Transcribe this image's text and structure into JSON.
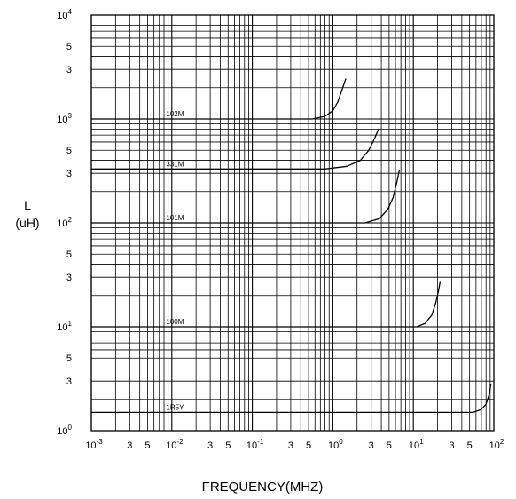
{
  "chart_data": {
    "type": "line",
    "title": "",
    "xlabel": "FREQUENCY(MHZ)",
    "ylabel": [
      "L",
      "(uH)"
    ],
    "x_scale": "log",
    "y_scale": "log",
    "xlim": [
      0.001,
      100
    ],
    "ylim": [
      1,
      10000
    ],
    "grid": true,
    "x_ticks": [
      {
        "v": 0.001,
        "base": "10",
        "exp": "-3"
      },
      {
        "v": 0.003,
        "base": "3"
      },
      {
        "v": 0.005,
        "base": "5"
      },
      {
        "v": 0.01,
        "base": "10",
        "exp": "-2"
      },
      {
        "v": 0.03,
        "base": "3"
      },
      {
        "v": 0.05,
        "base": "5"
      },
      {
        "v": 0.1,
        "base": "10",
        "exp": "-1"
      },
      {
        "v": 0.3,
        "base": "3"
      },
      {
        "v": 0.5,
        "base": "5"
      },
      {
        "v": 1,
        "base": "10",
        "exp": "0"
      },
      {
        "v": 3,
        "base": "3"
      },
      {
        "v": 5,
        "base": "5"
      },
      {
        "v": 10,
        "base": "10",
        "exp": "1"
      },
      {
        "v": 30,
        "base": "3"
      },
      {
        "v": 50,
        "base": "5"
      },
      {
        "v": 100,
        "base": "10",
        "exp": "2"
      }
    ],
    "y_ticks": [
      {
        "v": 1,
        "base": "10",
        "exp": "0"
      },
      {
        "v": 3,
        "base": "3"
      },
      {
        "v": 5,
        "base": "5"
      },
      {
        "v": 10,
        "base": "10",
        "exp": "1"
      },
      {
        "v": 30,
        "base": "3"
      },
      {
        "v": 50,
        "base": "5"
      },
      {
        "v": 100,
        "base": "10",
        "exp": "2"
      },
      {
        "v": 300,
        "base": "3"
      },
      {
        "v": 500,
        "base": "5"
      },
      {
        "v": 1000,
        "base": "10",
        "exp": "3"
      },
      {
        "v": 3000,
        "base": "3"
      },
      {
        "v": 5000,
        "base": "5"
      },
      {
        "v": 10000,
        "base": "10",
        "exp": "4"
      }
    ],
    "series": [
      {
        "name": "102M",
        "label_x": 0.0085,
        "x": [
          0.001,
          0.55,
          0.8,
          1.0,
          1.15,
          1.3,
          1.45
        ],
        "y": [
          1000,
          1000,
          1060,
          1200,
          1450,
          1900,
          2450
        ]
      },
      {
        "name": "331M",
        "label_x": 0.0085,
        "x": [
          0.001,
          0.8,
          1.5,
          2.2,
          2.8,
          3.3,
          3.7
        ],
        "y": [
          330,
          330,
          350,
          400,
          500,
          650,
          800
        ]
      },
      {
        "name": "101M",
        "label_x": 0.0085,
        "x": [
          0.001,
          2.5,
          3.8,
          4.8,
          5.6,
          6.2,
          6.7
        ],
        "y": [
          100,
          100,
          110,
          135,
          175,
          240,
          320
        ]
      },
      {
        "name": "100M",
        "label_x": 0.0085,
        "x": [
          0.001,
          11,
          14,
          17,
          19,
          20.5,
          21.5
        ],
        "y": [
          10,
          10,
          10.8,
          13,
          17,
          22,
          27
        ]
      },
      {
        "name": "1R5Y",
        "label_x": 0.0085,
        "x": [
          0.001,
          55,
          70,
          80,
          87,
          92
        ],
        "y": [
          1.5,
          1.5,
          1.6,
          1.8,
          2.2,
          2.8
        ]
      }
    ]
  }
}
